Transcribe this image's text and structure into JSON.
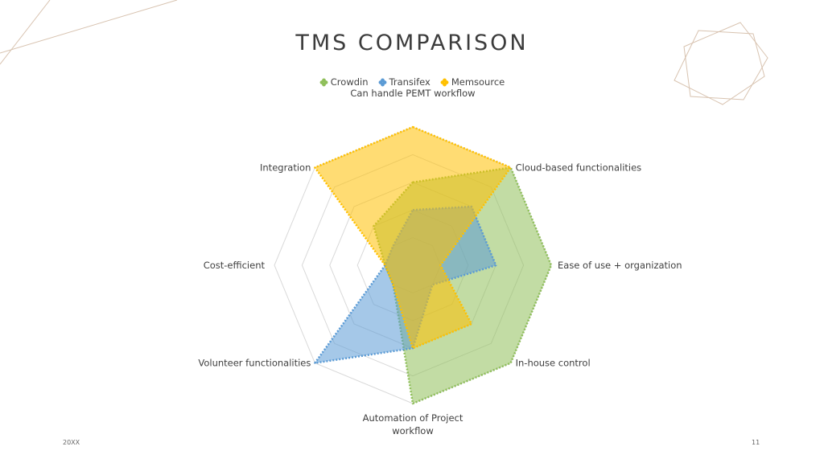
{
  "slide": {
    "title": "TMS COMPARISON",
    "footer_left": "20XX",
    "footer_right": "11"
  },
  "colors": {
    "crowdin": "#8fbf5a",
    "transifex": "#5b9bd5",
    "memsource": "#ffc000",
    "grid": "#d9d9d9",
    "decor": "#d8c3b0"
  },
  "chart_data": {
    "type": "radar",
    "categories": [
      "Can handle PEMT workflow",
      "Cloud-based functionalities",
      "Ease of use + organization",
      "In-house control",
      "Automation of Project workflow",
      "Volunteer functionalities",
      "Cost-efficient",
      "Integration"
    ],
    "series": [
      {
        "name": "Crowdin",
        "values": [
          3,
          5,
          5,
          5,
          5,
          1,
          1,
          2
        ],
        "color": "#8fbf5a"
      },
      {
        "name": "Transifex",
        "values": [
          2,
          3,
          3,
          1,
          3,
          5,
          1,
          1
        ],
        "color": "#5b9bd5"
      },
      {
        "name": "Memsource",
        "values": [
          5,
          5,
          1,
          3,
          3,
          1,
          1,
          5
        ],
        "color": "#ffc000"
      }
    ],
    "rmin": 0,
    "rmax": 5,
    "grid_levels": 5,
    "legend_position": "top"
  }
}
